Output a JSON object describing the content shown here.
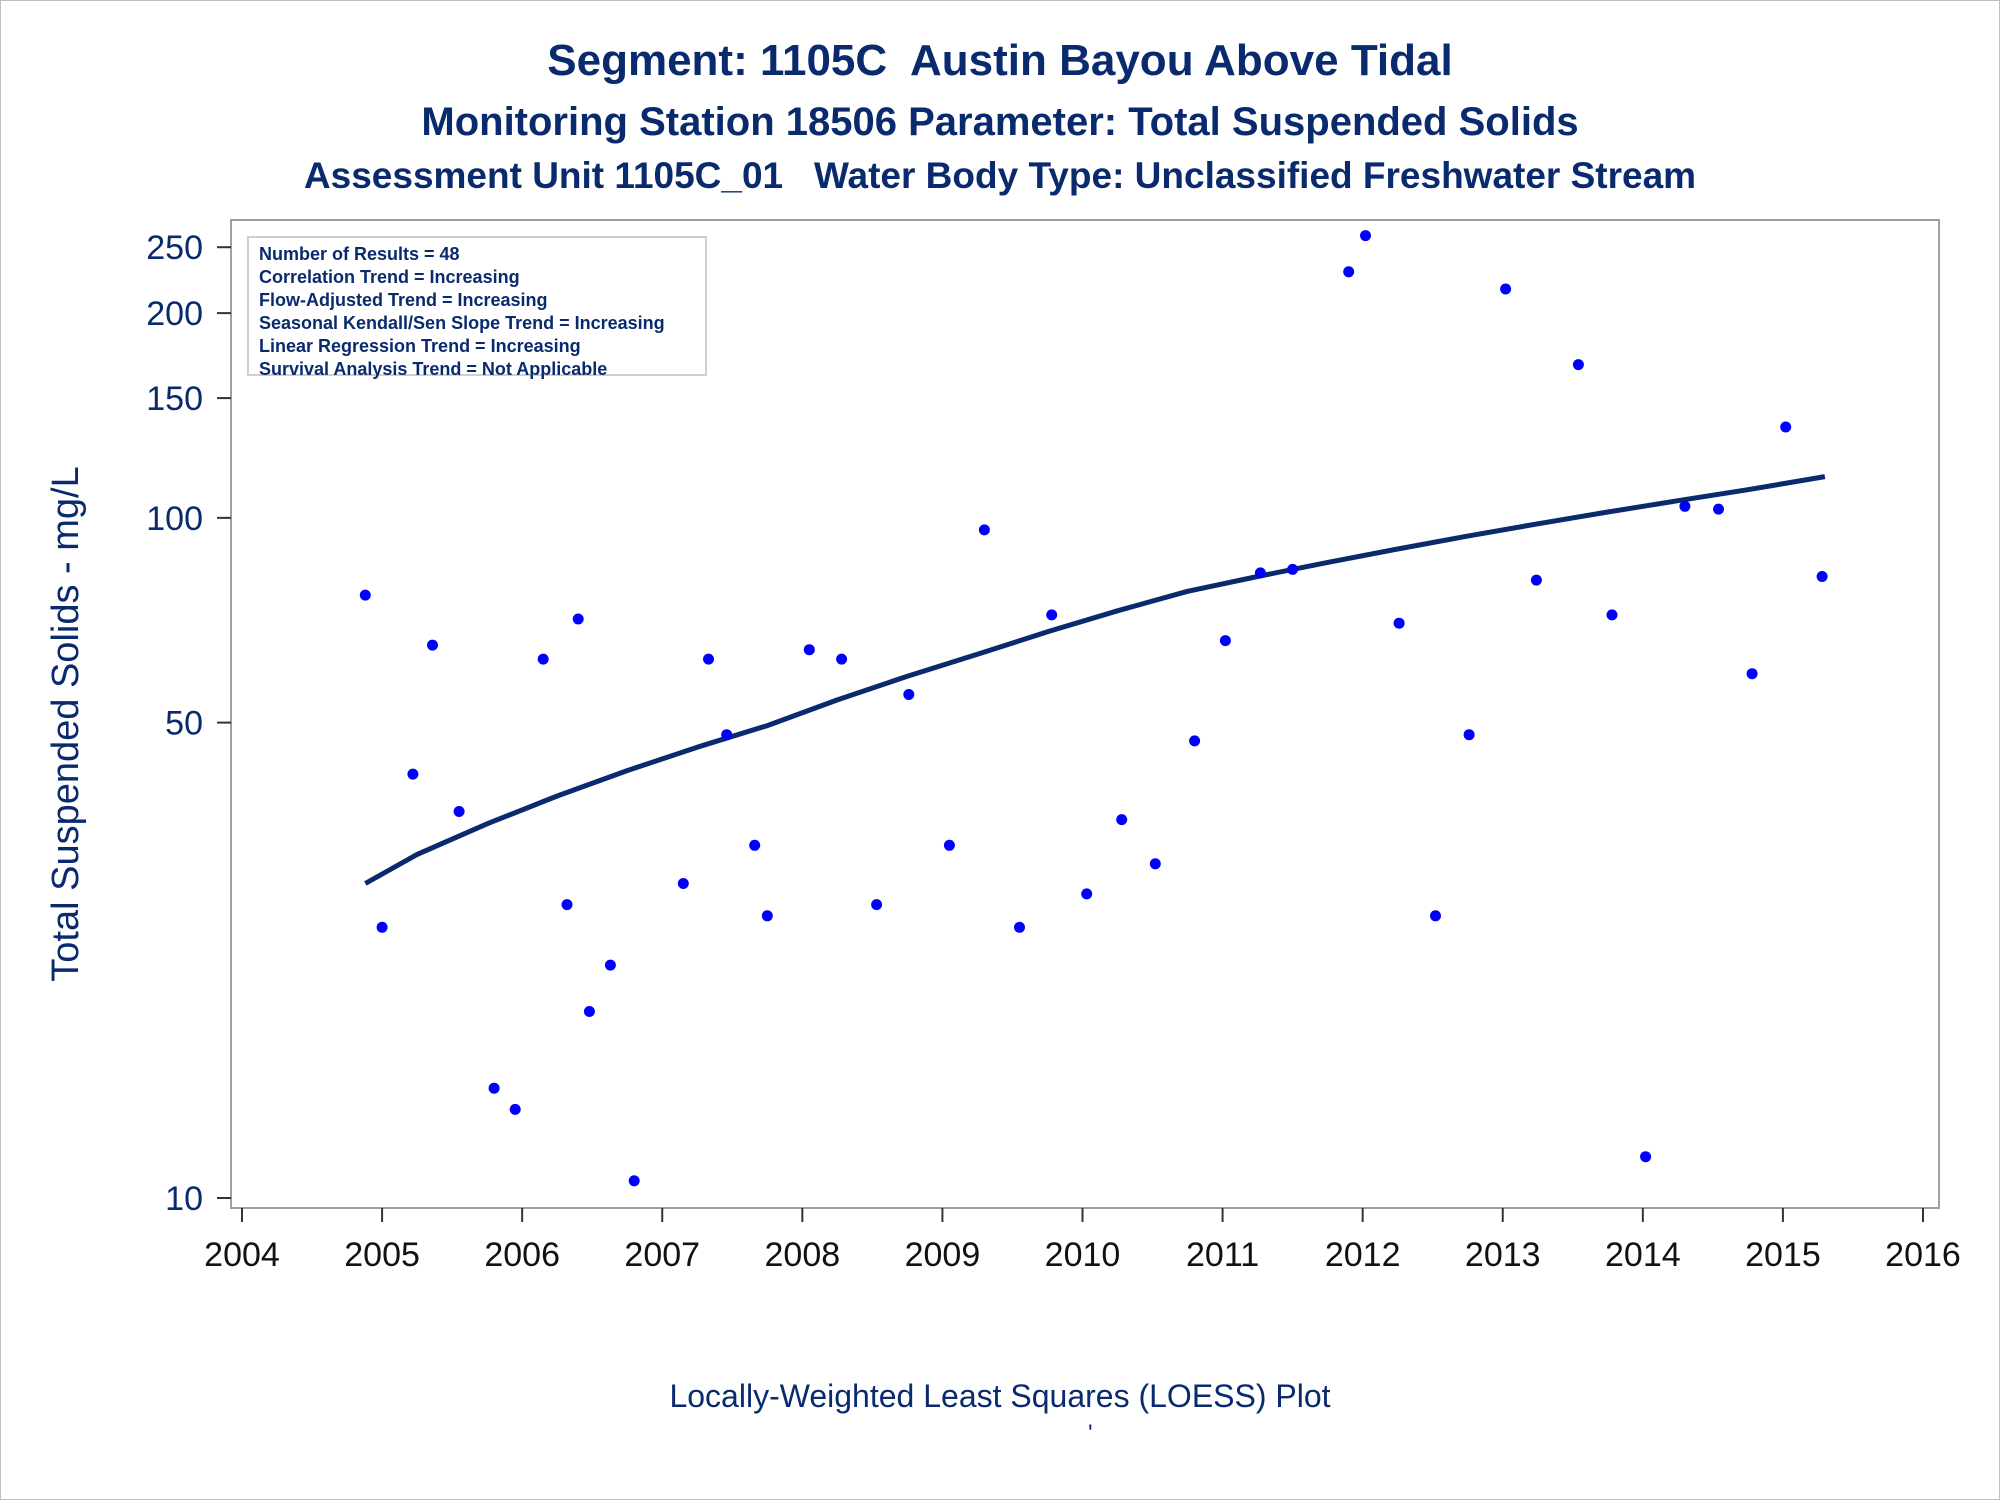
{
  "titles": [
    "Segment: 1105C  Austin Bayou Above Tidal",
    "Monitoring Station 18506 Parameter: Total Suspended Solids",
    "Assessment Unit 1105C_01   Water Body Type: Unclassified Freshwater Stream"
  ],
  "legend_lines": [
    "Number of Results = 48",
    "Correlation Trend = Increasing",
    "Flow-Adjusted Trend = Increasing",
    "Seasonal Kendall/Sen Slope Trend = Increasing",
    "Linear Regression Trend = Increasing",
    "Survival Analysis Trend = Not Applicable"
  ],
  "footer": "Locally-Weighted Least Squares (LOESS) Plot",
  "footer_mark": "'",
  "colors": {
    "text": "#0a2a6e",
    "points": "#0000ff",
    "line": "#0a2a6e",
    "axis": "#a0a0a0"
  },
  "chart_data": {
    "type": "scatter",
    "ylabel": "Total Suspended Solids - mg/L",
    "xlabel": "",
    "y_scale": "log",
    "xlim": [
      2004,
      2016
    ],
    "ylim": [
      10,
      265
    ],
    "x_ticks": [
      "2004",
      "2005",
      "2006",
      "2007",
      "2008",
      "2009",
      "2010",
      "2011",
      "2012",
      "2013",
      "2014",
      "2015",
      "2016"
    ],
    "y_ticks": [
      10,
      50,
      100,
      150,
      200,
      250
    ],
    "series": [
      {
        "type": "scatter",
        "points": [
          [
            2004.88,
            77
          ],
          [
            2005.0,
            25
          ],
          [
            2005.22,
            42
          ],
          [
            2005.36,
            65
          ],
          [
            2005.55,
            37
          ],
          [
            2005.8,
            14.5
          ],
          [
            2005.95,
            13.5
          ],
          [
            2006.15,
            62
          ],
          [
            2006.32,
            27
          ],
          [
            2006.4,
            71
          ],
          [
            2006.48,
            18.8
          ],
          [
            2006.63,
            22
          ],
          [
            2006.8,
            10.6
          ],
          [
            2007.15,
            29
          ],
          [
            2007.33,
            62
          ],
          [
            2007.46,
            48
          ],
          [
            2007.66,
            33
          ],
          [
            2007.75,
            26
          ],
          [
            2008.05,
            64
          ],
          [
            2008.28,
            62
          ],
          [
            2008.53,
            27
          ],
          [
            2008.76,
            55
          ],
          [
            2009.05,
            33
          ],
          [
            2009.3,
            96
          ],
          [
            2009.55,
            25
          ],
          [
            2009.78,
            72
          ],
          [
            2010.03,
            28
          ],
          [
            2010.28,
            36
          ],
          [
            2010.52,
            31
          ],
          [
            2010.8,
            47
          ],
          [
            2011.02,
            66
          ],
          [
            2011.27,
            83
          ],
          [
            2011.5,
            84
          ],
          [
            2011.9,
            230
          ],
          [
            2012.02,
            260
          ],
          [
            2012.26,
            70
          ],
          [
            2012.52,
            26
          ],
          [
            2012.76,
            48
          ],
          [
            2013.02,
            217
          ],
          [
            2013.24,
            81
          ],
          [
            2013.54,
            168
          ],
          [
            2013.78,
            72
          ],
          [
            2014.02,
            11.5
          ],
          [
            2014.3,
            104
          ],
          [
            2014.54,
            103
          ],
          [
            2014.78,
            59
          ],
          [
            2015.02,
            136
          ],
          [
            2015.28,
            82
          ]
        ]
      },
      {
        "type": "line",
        "name": "LOESS",
        "points": [
          [
            2004.88,
            29
          ],
          [
            2005.25,
            32
          ],
          [
            2005.75,
            35.5
          ],
          [
            2006.25,
            39
          ],
          [
            2006.75,
            42.5
          ],
          [
            2007.25,
            46
          ],
          [
            2007.75,
            49.5
          ],
          [
            2008.25,
            54
          ],
          [
            2008.75,
            58.5
          ],
          [
            2009.25,
            63
          ],
          [
            2009.75,
            68
          ],
          [
            2010.25,
            73
          ],
          [
            2010.75,
            78
          ],
          [
            2011.25,
            82
          ],
          [
            2011.75,
            86
          ],
          [
            2012.25,
            90
          ],
          [
            2012.75,
            94
          ],
          [
            2013.25,
            98
          ],
          [
            2013.75,
            102
          ],
          [
            2014.25,
            106
          ],
          [
            2014.75,
            110
          ],
          [
            2015.3,
            115
          ]
        ]
      }
    ]
  }
}
